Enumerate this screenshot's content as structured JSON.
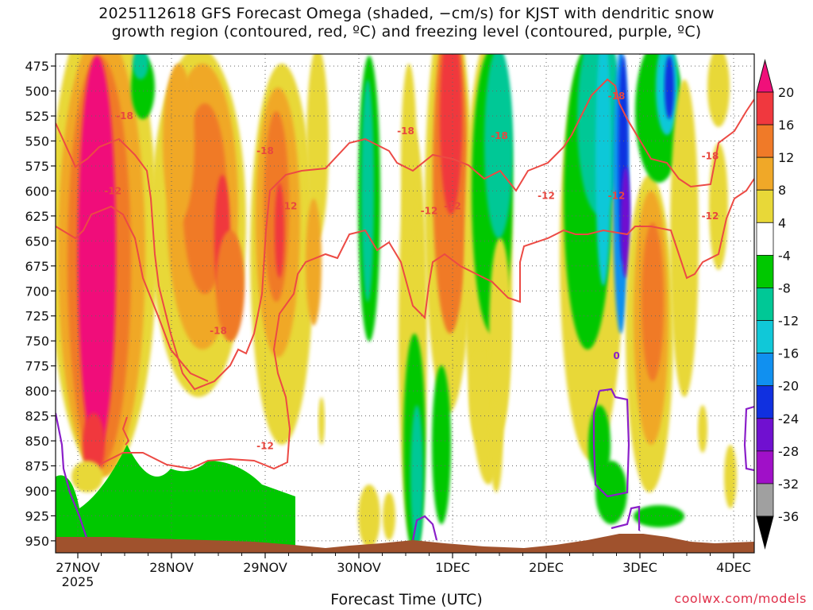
{
  "chart_data": {
    "type": "heatmap",
    "title_line1": "2025112618 GFS Forecast Omega (shaded, −cm/s) for KJST with dendritic snow",
    "title_line2": "growth region (contoured, red, ºC) and freezing level (contoured, purple, ºC)",
    "xlabel": "Forecast Time (UTC)",
    "x_ticks": [
      "27NOV",
      "28NOV",
      "29NOV",
      "30NOV",
      "1DEC",
      "2DEC",
      "3DEC",
      "4DEC"
    ],
    "x_year_label": "2025",
    "y_ticks": [
      475,
      500,
      525,
      550,
      575,
      600,
      625,
      650,
      675,
      700,
      725,
      750,
      775,
      800,
      825,
      850,
      875,
      900,
      925,
      950
    ],
    "y_range_hpa": [
      463,
      962
    ],
    "colorbar": {
      "labels": [
        20,
        16,
        12,
        8,
        4,
        -4,
        -8,
        -12,
        -16,
        -20,
        -24,
        -28,
        -32,
        -36
      ],
      "colors": [
        "#f0107a",
        "#f0383e",
        "#f07a28",
        "#f0a828",
        "#e8d838",
        "#ffffff",
        "#00c800",
        "#00c896",
        "#10c8d8",
        "#1090f0",
        "#1030e0",
        "#7010d0",
        "#a010c8",
        "#a0a0a0",
        "#000000"
      ]
    },
    "contour_labels_red": [
      -18,
      -12
    ],
    "contour_labels_purple": [
      0
    ],
    "series": [
      {
        "values": [
          {
            "x": "27NOV 09Z",
            "y": 600,
            "label": "-12"
          },
          {
            "x": "27NOV 12Z",
            "y": 525,
            "label": "-18"
          },
          {
            "x": "28NOV 12Z",
            "y": 740,
            "label": "-18"
          },
          {
            "x": "29NOV 00Z",
            "y": 560,
            "label": "-18"
          },
          {
            "x": "29NOV 06Z",
            "y": 615,
            "label": "-12"
          },
          {
            "x": "29NOV 00Z",
            "y": 855,
            "label": "-12"
          },
          {
            "x": "30NOV 18Z",
            "y": 620,
            "label": "-12"
          },
          {
            "x": "30NOV 12Z",
            "y": 540,
            "label": "-18"
          },
          {
            "x": "1DEC 00Z",
            "y": 615,
            "label": "-12"
          },
          {
            "x": "1DEC 12Z",
            "y": 545,
            "label": "-18"
          },
          {
            "x": "2DEC 00Z",
            "y": 605,
            "label": "-12"
          },
          {
            "x": "2DEC 18Z",
            "y": 505,
            "label": "-18"
          },
          {
            "x": "2DEC 18Z",
            "y": 605,
            "label": "-12"
          },
          {
            "x": "3DEC 18Z",
            "y": 565,
            "label": "-18"
          },
          {
            "x": "3DEC 18Z",
            "y": 625,
            "label": "-12"
          },
          {
            "x": "2DEC 18Z",
            "y": 765,
            "label": "0"
          }
        ]
      }
    ]
  },
  "credit": "coolwx.com/models"
}
